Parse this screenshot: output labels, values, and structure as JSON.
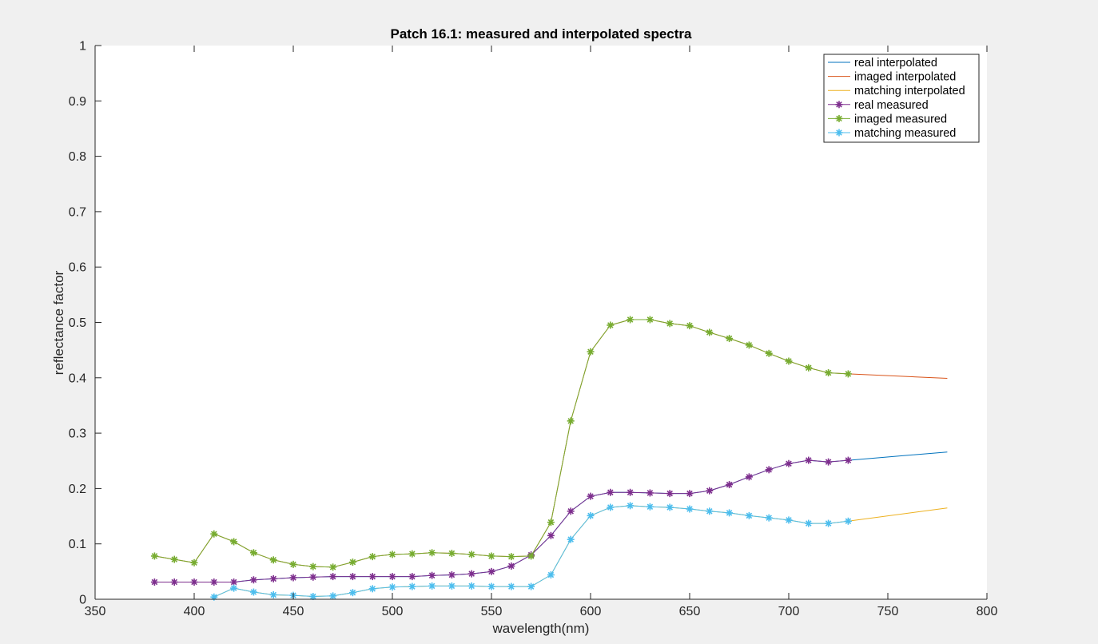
{
  "chart_data": {
    "type": "line",
    "title": "Patch 16.1: measured and interpolated spectra",
    "xlabel": "wavelength(nm)",
    "ylabel": "reflectance factor",
    "xlim": [
      350,
      800
    ],
    "ylim": [
      0,
      1
    ],
    "xticks": [
      "350",
      "400",
      "450",
      "500",
      "550",
      "600",
      "650",
      "700",
      "750",
      "800"
    ],
    "yticks": [
      "0",
      "0.1",
      "0.2",
      "0.3",
      "0.4",
      "0.5",
      "0.6",
      "0.7",
      "0.8",
      "0.9",
      "1"
    ],
    "grid": false,
    "legend_position": "top-right",
    "series": [
      {
        "name": "real interpolated",
        "color": "#0072bd",
        "kind": "line",
        "x": [
          380,
          390,
          400,
          410,
          420,
          430,
          440,
          450,
          460,
          470,
          480,
          490,
          500,
          510,
          520,
          530,
          540,
          550,
          560,
          570,
          580,
          590,
          600,
          610,
          620,
          630,
          640,
          650,
          660,
          670,
          680,
          690,
          700,
          710,
          720,
          730,
          780
        ],
        "y": [
          0.031,
          0.031,
          0.031,
          0.031,
          0.031,
          0.035,
          0.037,
          0.039,
          0.04,
          0.041,
          0.041,
          0.041,
          0.041,
          0.041,
          0.043,
          0.044,
          0.046,
          0.05,
          0.06,
          0.08,
          0.115,
          0.159,
          0.186,
          0.193,
          0.193,
          0.192,
          0.191,
          0.191,
          0.196,
          0.207,
          0.221,
          0.234,
          0.245,
          0.251,
          0.248,
          0.251,
          0.266
        ]
      },
      {
        "name": "imaged interpolated",
        "color": "#d95319",
        "kind": "line",
        "x": [
          380,
          390,
          400,
          410,
          420,
          430,
          440,
          450,
          460,
          470,
          480,
          490,
          500,
          510,
          520,
          530,
          540,
          550,
          560,
          570,
          580,
          590,
          600,
          610,
          620,
          630,
          640,
          650,
          660,
          670,
          680,
          690,
          700,
          710,
          720,
          730,
          780
        ],
        "y": [
          0.078,
          0.072,
          0.066,
          0.118,
          0.104,
          0.084,
          0.071,
          0.063,
          0.059,
          0.058,
          0.067,
          0.077,
          0.081,
          0.082,
          0.084,
          0.083,
          0.081,
          0.078,
          0.077,
          0.078,
          0.139,
          0.322,
          0.447,
          0.495,
          0.505,
          0.505,
          0.498,
          0.494,
          0.482,
          0.471,
          0.459,
          0.444,
          0.43,
          0.418,
          0.409,
          0.407,
          0.399
        ]
      },
      {
        "name": "matching interpolated",
        "color": "#edb120",
        "kind": "line",
        "x": [
          410,
          420,
          430,
          440,
          450,
          460,
          470,
          480,
          490,
          500,
          510,
          520,
          530,
          540,
          550,
          560,
          570,
          580,
          590,
          600,
          610,
          620,
          630,
          640,
          650,
          660,
          670,
          680,
          690,
          700,
          710,
          720,
          730,
          780
        ],
        "y": [
          0.004,
          0.02,
          0.013,
          0.008,
          0.007,
          0.005,
          0.006,
          0.012,
          0.019,
          0.022,
          0.023,
          0.024,
          0.024,
          0.024,
          0.023,
          0.023,
          0.023,
          0.044,
          0.108,
          0.151,
          0.166,
          0.169,
          0.167,
          0.166,
          0.163,
          0.159,
          0.156,
          0.151,
          0.147,
          0.143,
          0.137,
          0.137,
          0.141,
          0.165
        ]
      },
      {
        "name": "real measured",
        "color": "#7e2f8e",
        "kind": "markers",
        "x": [
          380,
          390,
          400,
          410,
          420,
          430,
          440,
          450,
          460,
          470,
          480,
          490,
          500,
          510,
          520,
          530,
          540,
          550,
          560,
          570,
          580,
          590,
          600,
          610,
          620,
          630,
          640,
          650,
          660,
          670,
          680,
          690,
          700,
          710,
          720,
          730
        ],
        "y": [
          0.031,
          0.031,
          0.031,
          0.031,
          0.031,
          0.035,
          0.037,
          0.039,
          0.04,
          0.041,
          0.041,
          0.041,
          0.041,
          0.041,
          0.043,
          0.044,
          0.046,
          0.05,
          0.06,
          0.08,
          0.115,
          0.159,
          0.186,
          0.193,
          0.193,
          0.192,
          0.191,
          0.191,
          0.196,
          0.207,
          0.221,
          0.234,
          0.245,
          0.251,
          0.248,
          0.251
        ]
      },
      {
        "name": "imaged measured",
        "color": "#77ac30",
        "kind": "markers",
        "x": [
          380,
          390,
          400,
          410,
          420,
          430,
          440,
          450,
          460,
          470,
          480,
          490,
          500,
          510,
          520,
          530,
          540,
          550,
          560,
          570,
          580,
          590,
          600,
          610,
          620,
          630,
          640,
          650,
          660,
          670,
          680,
          690,
          700,
          710,
          720,
          730
        ],
        "y": [
          0.078,
          0.072,
          0.066,
          0.118,
          0.104,
          0.084,
          0.071,
          0.063,
          0.059,
          0.058,
          0.067,
          0.077,
          0.081,
          0.082,
          0.084,
          0.083,
          0.081,
          0.078,
          0.077,
          0.078,
          0.139,
          0.322,
          0.447,
          0.495,
          0.505,
          0.505,
          0.498,
          0.494,
          0.482,
          0.471,
          0.459,
          0.444,
          0.43,
          0.418,
          0.409,
          0.407
        ]
      },
      {
        "name": "matching measured",
        "color": "#4dbeee",
        "kind": "markers",
        "x": [
          410,
          420,
          430,
          440,
          450,
          460,
          470,
          480,
          490,
          500,
          510,
          520,
          530,
          540,
          550,
          560,
          570,
          580,
          590,
          600,
          610,
          620,
          630,
          640,
          650,
          660,
          670,
          680,
          690,
          700,
          710,
          720,
          730
        ],
        "y": [
          0.004,
          0.02,
          0.013,
          0.008,
          0.007,
          0.005,
          0.006,
          0.012,
          0.019,
          0.022,
          0.023,
          0.024,
          0.024,
          0.024,
          0.023,
          0.023,
          0.023,
          0.044,
          0.108,
          0.151,
          0.166,
          0.169,
          0.167,
          0.166,
          0.163,
          0.159,
          0.156,
          0.151,
          0.147,
          0.143,
          0.137,
          0.137,
          0.141
        ]
      }
    ]
  }
}
